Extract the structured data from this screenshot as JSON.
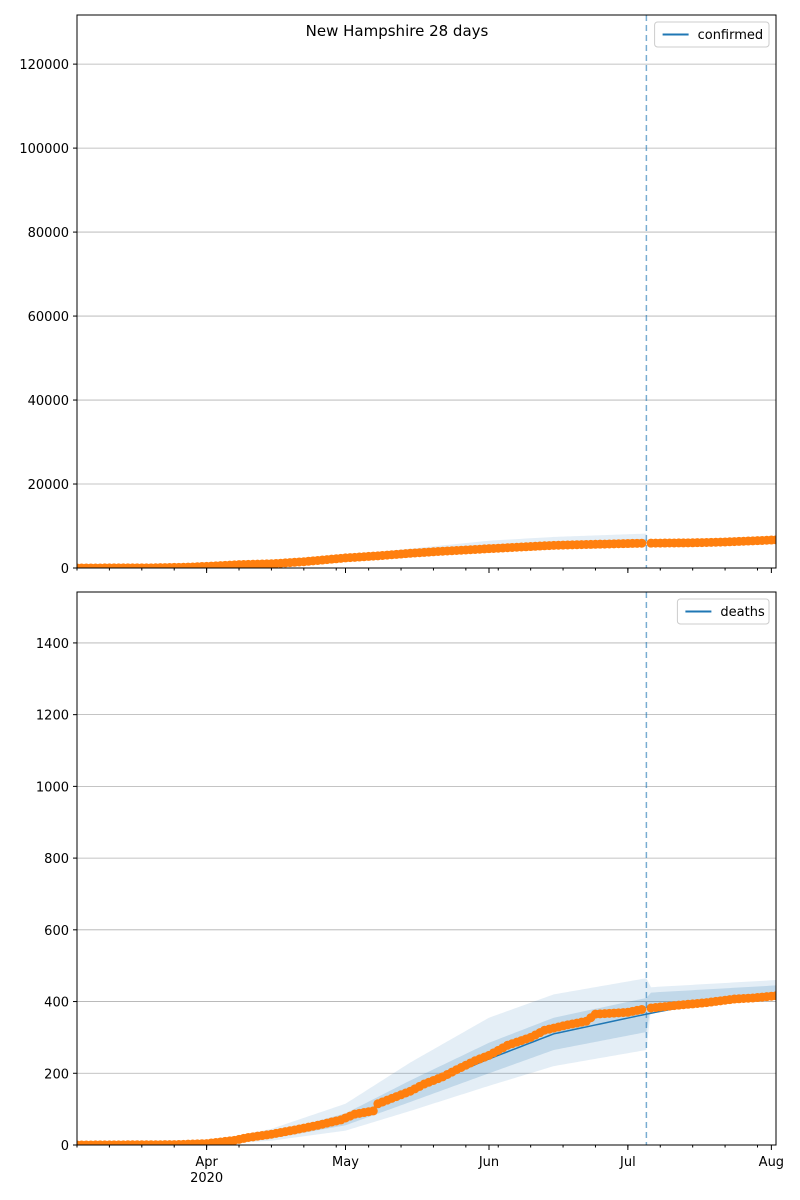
{
  "chart_data": [
    {
      "type": "line",
      "title": "New Hampshire 28 days",
      "legend": [
        "confirmed"
      ],
      "legend_placement": "top-right",
      "grid": "y",
      "xlim": [
        "2020-03-04",
        "2020-08-02"
      ],
      "ylim": [
        0,
        131700
      ],
      "yticks": [
        0,
        20000,
        40000,
        60000,
        80000,
        100000,
        120000
      ],
      "forecast_start": "2020-07-05",
      "observed": [
        [
          "2020-03-04",
          0
        ],
        [
          "2020-03-20",
          40
        ],
        [
          "2020-03-28",
          200
        ],
        [
          "2020-04-01",
          400
        ],
        [
          "2020-04-08",
          800
        ],
        [
          "2020-04-15",
          1000
        ],
        [
          "2020-04-22",
          1500
        ],
        [
          "2020-05-01",
          2400
        ],
        [
          "2020-05-08",
          2900
        ],
        [
          "2020-05-15",
          3500
        ],
        [
          "2020-05-22",
          4000
        ],
        [
          "2020-06-01",
          4600
        ],
        [
          "2020-06-08",
          5000
        ],
        [
          "2020-06-15",
          5400
        ],
        [
          "2020-06-22",
          5600
        ],
        [
          "2020-07-04",
          5900
        ],
        [
          "2020-07-15",
          6000
        ],
        [
          "2020-07-22",
          6200
        ],
        [
          "2020-08-02",
          6700
        ]
      ],
      "model": [
        [
          "2020-03-04",
          0
        ],
        [
          "2020-04-01",
          350
        ],
        [
          "2020-04-15",
          1000
        ],
        [
          "2020-05-01",
          2300
        ],
        [
          "2020-05-15",
          3600
        ],
        [
          "2020-06-01",
          4900
        ],
        [
          "2020-06-15",
          5600
        ],
        [
          "2020-07-05",
          6200
        ]
      ],
      "band_outer": [
        [
          "2020-03-04",
          0,
          0
        ],
        [
          "2020-04-01",
          250,
          500
        ],
        [
          "2020-04-15",
          700,
          1300
        ],
        [
          "2020-05-01",
          1800,
          3000
        ],
        [
          "2020-05-15",
          2800,
          4600
        ],
        [
          "2020-06-01",
          3900,
          6500
        ],
        [
          "2020-06-15",
          4500,
          7400
        ],
        [
          "2020-07-05",
          5100,
          8200
        ]
      ],
      "band_inner": [
        [
          "2020-03-04",
          0,
          0
        ],
        [
          "2020-04-01",
          300,
          420
        ],
        [
          "2020-04-15",
          850,
          1150
        ],
        [
          "2020-05-01",
          2050,
          2600
        ],
        [
          "2020-05-15",
          3200,
          4050
        ],
        [
          "2020-06-01",
          4400,
          5500
        ],
        [
          "2020-06-15",
          5000,
          6300
        ],
        [
          "2020-07-05",
          5600,
          6900
        ]
      ],
      "colors": {
        "observed": "#ff7f0e",
        "model": "#1f77b4",
        "forecast_line": "#1f77b4"
      }
    },
    {
      "type": "line",
      "legend": [
        "deaths"
      ],
      "legend_placement": "top-right",
      "grid": "y",
      "xlim": [
        "2020-03-04",
        "2020-08-02"
      ],
      "ylim": [
        0,
        1542
      ],
      "yticks": [
        0,
        200,
        400,
        600,
        800,
        1000,
        1200,
        1400
      ],
      "xticks": [
        "Apr\n2020",
        "May",
        "Jun",
        "Jul",
        "Aug"
      ],
      "xtick_dates": [
        "2020-04-01",
        "2020-05-01",
        "2020-06-01",
        "2020-07-01",
        "2020-08-01"
      ],
      "forecast_start": "2020-07-05",
      "observed": [
        [
          "2020-03-04",
          0
        ],
        [
          "2020-03-25",
          1
        ],
        [
          "2020-04-01",
          4
        ],
        [
          "2020-04-07",
          13
        ],
        [
          "2020-04-10",
          21
        ],
        [
          "2020-04-15",
          30
        ],
        [
          "2020-04-20",
          42
        ],
        [
          "2020-04-25",
          55
        ],
        [
          "2020-04-30",
          70
        ],
        [
          "2020-05-03",
          86
        ],
        [
          "2020-05-07",
          95
        ],
        [
          "2020-05-08",
          115
        ],
        [
          "2020-05-12",
          135
        ],
        [
          "2020-05-15",
          150
        ],
        [
          "2020-05-18",
          170
        ],
        [
          "2020-05-22",
          190
        ],
        [
          "2020-05-25",
          210
        ],
        [
          "2020-05-29",
          235
        ],
        [
          "2020-06-01",
          250
        ],
        [
          "2020-06-05",
          278
        ],
        [
          "2020-06-10",
          300
        ],
        [
          "2020-06-13",
          320
        ],
        [
          "2020-06-18",
          335
        ],
        [
          "2020-06-22",
          345
        ],
        [
          "2020-06-24",
          365
        ],
        [
          "2020-07-01",
          370
        ],
        [
          "2020-07-04",
          378
        ],
        [
          "2020-07-06",
          382
        ],
        [
          "2020-07-12",
          390
        ],
        [
          "2020-07-18",
          397
        ],
        [
          "2020-07-24",
          407
        ],
        [
          "2020-07-28",
          410
        ],
        [
          "2020-08-02",
          416
        ]
      ],
      "model": [
        [
          "2020-03-04",
          0
        ],
        [
          "2020-04-01",
          3
        ],
        [
          "2020-04-15",
          25
        ],
        [
          "2020-05-01",
          70
        ],
        [
          "2020-05-15",
          150
        ],
        [
          "2020-06-01",
          240
        ],
        [
          "2020-06-15",
          310
        ],
        [
          "2020-07-05",
          365
        ],
        [
          "2020-07-15",
          390
        ],
        [
          "2020-08-02",
          420
        ]
      ],
      "band_outer": [
        [
          "2020-03-04",
          0,
          0
        ],
        [
          "2020-04-01",
          0,
          8
        ],
        [
          "2020-04-15",
          12,
          45
        ],
        [
          "2020-05-01",
          40,
          115
        ],
        [
          "2020-05-15",
          95,
          230
        ],
        [
          "2020-06-01",
          165,
          355
        ],
        [
          "2020-06-15",
          220,
          420
        ],
        [
          "2020-07-05",
          265,
          465
        ],
        [
          "2020-07-06",
          380,
          440
        ],
        [
          "2020-08-02",
          405,
          460
        ]
      ],
      "band_inner": [
        [
          "2020-03-04",
          0,
          0
        ],
        [
          "2020-04-01",
          1,
          5
        ],
        [
          "2020-04-15",
          18,
          33
        ],
        [
          "2020-05-01",
          55,
          88
        ],
        [
          "2020-05-15",
          120,
          180
        ],
        [
          "2020-06-01",
          200,
          285
        ],
        [
          "2020-06-15",
          265,
          355
        ],
        [
          "2020-07-05",
          315,
          410
        ],
        [
          "2020-07-06",
          390,
          425
        ],
        [
          "2020-08-02",
          410,
          445
        ]
      ],
      "colors": {
        "observed": "#ff7f0e",
        "model": "#1f77b4",
        "forecast_line": "#1f77b4"
      }
    }
  ]
}
